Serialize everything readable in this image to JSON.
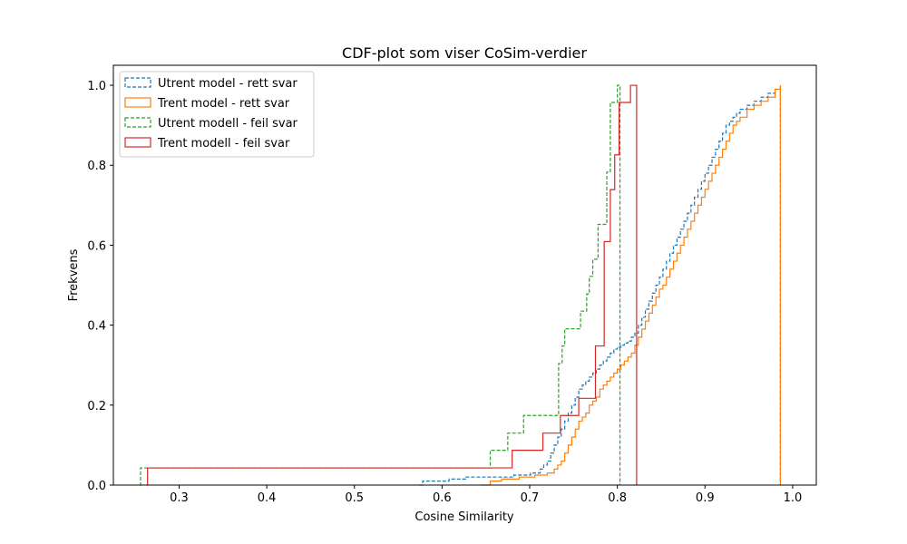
{
  "chart_data": {
    "type": "line",
    "subtype": "step-cdf",
    "title": "CDF-plot som viser CoSim-verdier",
    "xlabel": "Cosine Similarity",
    "ylabel": "Frekvens",
    "xlim": [
      0.225,
      1.027
    ],
    "ylim": [
      0,
      1.05
    ],
    "xticks": [
      0.3,
      0.4,
      0.5,
      0.6,
      0.7,
      0.8,
      0.9,
      1.0
    ],
    "xtick_labels": [
      "0.3",
      "0.4",
      "0.5",
      "0.6",
      "0.7",
      "0.8",
      "0.9",
      "1.0"
    ],
    "yticks": [
      0.0,
      0.2,
      0.4,
      0.6,
      0.8,
      1.0
    ],
    "ytick_labels": [
      "0.0",
      "0.2",
      "0.4",
      "0.6",
      "0.8",
      "1.0"
    ],
    "grid": false,
    "legend_position": "upper-left",
    "series": [
      {
        "name": "Utrent model - rett svar",
        "color": "#1f77b4",
        "dashed": true,
        "x": [
          0.574,
          0.578,
          0.608,
          0.627,
          0.664,
          0.682,
          0.701,
          0.712,
          0.716,
          0.72,
          0.724,
          0.728,
          0.732,
          0.736,
          0.74,
          0.744,
          0.748,
          0.752,
          0.756,
          0.76,
          0.764,
          0.768,
          0.772,
          0.776,
          0.78,
          0.784,
          0.788,
          0.792,
          0.796,
          0.8,
          0.804,
          0.808,
          0.812,
          0.816,
          0.82,
          0.824,
          0.828,
          0.832,
          0.836,
          0.84,
          0.844,
          0.848,
          0.852,
          0.856,
          0.86,
          0.864,
          0.868,
          0.872,
          0.876,
          0.88,
          0.884,
          0.888,
          0.892,
          0.896,
          0.9,
          0.904,
          0.908,
          0.912,
          0.916,
          0.92,
          0.924,
          0.928,
          0.932,
          0.936,
          0.94,
          0.948,
          0.956,
          0.964,
          0.972,
          0.98,
          0.986
        ],
        "y": [
          0.0,
          0.01,
          0.015,
          0.02,
          0.02,
          0.025,
          0.03,
          0.04,
          0.05,
          0.06,
          0.08,
          0.1,
          0.12,
          0.14,
          0.16,
          0.18,
          0.2,
          0.22,
          0.24,
          0.25,
          0.26,
          0.27,
          0.28,
          0.29,
          0.3,
          0.31,
          0.32,
          0.33,
          0.34,
          0.345,
          0.35,
          0.355,
          0.36,
          0.37,
          0.38,
          0.4,
          0.42,
          0.44,
          0.46,
          0.48,
          0.5,
          0.52,
          0.54,
          0.56,
          0.58,
          0.6,
          0.62,
          0.64,
          0.66,
          0.68,
          0.7,
          0.72,
          0.74,
          0.76,
          0.78,
          0.8,
          0.82,
          0.84,
          0.86,
          0.88,
          0.9,
          0.91,
          0.92,
          0.93,
          0.94,
          0.95,
          0.96,
          0.97,
          0.98,
          0.99,
          1.0
        ]
      },
      {
        "name": "Trent model - rett svar",
        "color": "#ff7f0e",
        "dashed": false,
        "x": [
          0.644,
          0.655,
          0.668,
          0.688,
          0.706,
          0.72,
          0.728,
          0.732,
          0.736,
          0.74,
          0.744,
          0.748,
          0.752,
          0.756,
          0.76,
          0.764,
          0.768,
          0.772,
          0.776,
          0.78,
          0.784,
          0.788,
          0.792,
          0.796,
          0.8,
          0.804,
          0.808,
          0.812,
          0.816,
          0.82,
          0.824,
          0.828,
          0.832,
          0.836,
          0.84,
          0.844,
          0.848,
          0.852,
          0.856,
          0.86,
          0.864,
          0.868,
          0.872,
          0.876,
          0.88,
          0.884,
          0.888,
          0.892,
          0.896,
          0.9,
          0.904,
          0.908,
          0.912,
          0.916,
          0.92,
          0.924,
          0.928,
          0.932,
          0.936,
          0.94,
          0.948,
          0.956,
          0.964,
          0.972,
          0.98,
          0.986
        ],
        "y": [
          0.0,
          0.01,
          0.015,
          0.02,
          0.025,
          0.03,
          0.04,
          0.05,
          0.06,
          0.08,
          0.1,
          0.12,
          0.14,
          0.16,
          0.17,
          0.18,
          0.2,
          0.21,
          0.22,
          0.24,
          0.25,
          0.26,
          0.27,
          0.28,
          0.29,
          0.3,
          0.31,
          0.32,
          0.33,
          0.35,
          0.37,
          0.39,
          0.41,
          0.43,
          0.45,
          0.47,
          0.49,
          0.5,
          0.52,
          0.54,
          0.56,
          0.58,
          0.6,
          0.62,
          0.64,
          0.66,
          0.68,
          0.7,
          0.72,
          0.74,
          0.76,
          0.78,
          0.8,
          0.82,
          0.84,
          0.86,
          0.88,
          0.9,
          0.91,
          0.92,
          0.94,
          0.95,
          0.96,
          0.97,
          0.99,
          1.0
        ]
      },
      {
        "name": "Utrent modell - feil svar",
        "color": "#2ca02c",
        "dashed": true,
        "x": [
          0.255,
          0.256,
          0.655,
          0.675,
          0.693,
          0.712,
          0.733,
          0.737,
          0.74,
          0.758,
          0.765,
          0.768,
          0.772,
          0.778,
          0.788,
          0.792,
          0.8,
          0.803
        ],
        "y": [
          0.0,
          0.043,
          0.087,
          0.13,
          0.174,
          0.174,
          0.304,
          0.348,
          0.391,
          0.435,
          0.478,
          0.522,
          0.565,
          0.652,
          0.783,
          0.957,
          1.0,
          1.0
        ]
      },
      {
        "name": "Trent modell - feil svar",
        "color": "#d62728",
        "dashed": false,
        "x": [
          0.263,
          0.264,
          0.68,
          0.715,
          0.735,
          0.756,
          0.775,
          0.785,
          0.792,
          0.797,
          0.802,
          0.815,
          0.822
        ],
        "y": [
          0.0,
          0.043,
          0.087,
          0.13,
          0.174,
          0.217,
          0.348,
          0.609,
          0.739,
          0.826,
          0.957,
          1.0,
          1.0
        ]
      }
    ]
  }
}
